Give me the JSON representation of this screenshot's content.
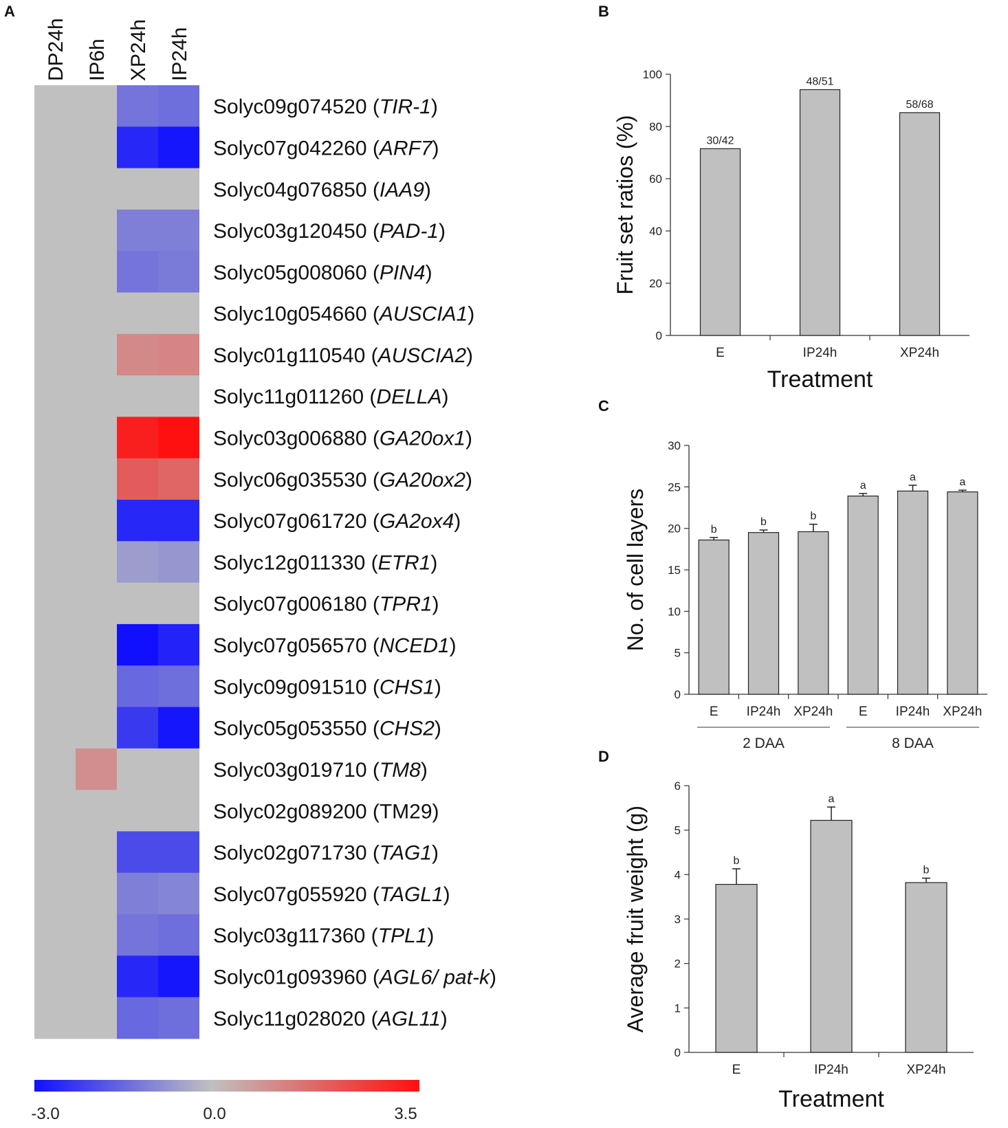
{
  "colors": {
    "low": "#1010ff",
    "mid": "#c0c0c0",
    "high": "#ff1010",
    "bar_fill": "#c0c0c0",
    "group_line": "#999999"
  },
  "chart_data": [
    {
      "panel": "A",
      "type": "heatmap",
      "columns": [
        "DP24h",
        "IP6h",
        "XP24h",
        "IP24h"
      ],
      "rows": [
        {
          "id": "Solyc09g074520",
          "gene": "TIR-1",
          "italic": true,
          "values": [
            0,
            0,
            -1.3,
            -1.4
          ]
        },
        {
          "id": "Solyc07g042260",
          "gene": "ARF7",
          "italic": true,
          "values": [
            0,
            0,
            -2.6,
            -2.9
          ]
        },
        {
          "id": "Solyc04g076850",
          "gene": "IAA9",
          "italic": true,
          "values": [
            0,
            0,
            0,
            0
          ]
        },
        {
          "id": "Solyc03g120450",
          "gene": "PAD-1",
          "italic": true,
          "values": [
            0,
            0,
            -1.1,
            -1.1
          ]
        },
        {
          "id": "Solyc05g008060",
          "gene": "PIN4",
          "italic": true,
          "values": [
            0,
            0,
            -1.3,
            -1.2
          ]
        },
        {
          "id": "Solyc10g054660",
          "gene": "AUSCIA1",
          "italic": true,
          "values": [
            0,
            0,
            0,
            0
          ]
        },
        {
          "id": "Solyc01g110540",
          "gene": "AUSCIA2",
          "italic": true,
          "values": [
            0,
            0,
            1.1,
            1.2
          ]
        },
        {
          "id": "Solyc11g011260",
          "gene": "DELLA",
          "italic": true,
          "values": [
            0,
            0,
            0,
            0
          ]
        },
        {
          "id": "Solyc03g006880",
          "gene": "GA20ox1",
          "italic": true,
          "values": [
            0,
            0,
            3.2,
            3.5
          ]
        },
        {
          "id": "Solyc06g035530",
          "gene": "GA20ox2",
          "italic": true,
          "values": [
            0,
            0,
            2.0,
            1.8
          ]
        },
        {
          "id": "Solyc07g061720",
          "gene": "GA2ox4",
          "italic": true,
          "values": [
            0,
            0,
            -2.6,
            -2.6
          ]
        },
        {
          "id": "Solyc12g011330",
          "gene": "ETR1",
          "italic": true,
          "values": [
            0,
            0,
            -0.6,
            -0.7
          ]
        },
        {
          "id": "Solyc07g006180",
          "gene": "TPR1",
          "italic": true,
          "values": [
            0,
            0,
            0,
            0
          ]
        },
        {
          "id": "Solyc07g056570",
          "gene": "NCED1",
          "italic": true,
          "values": [
            0,
            0,
            -3.0,
            -2.7
          ]
        },
        {
          "id": "Solyc09g091510",
          "gene": "CHS1",
          "italic": true,
          "values": [
            0,
            0,
            -1.5,
            -1.4
          ]
        },
        {
          "id": "Solyc05g053550",
          "gene": "CHS2",
          "italic": true,
          "values": [
            0,
            0,
            -2.3,
            -2.9
          ]
        },
        {
          "id": "Solyc03g019710",
          "gene": "TM8",
          "italic": true,
          "values": [
            0,
            1.0,
            0,
            0
          ]
        },
        {
          "id": "Solyc02g089200",
          "gene": "TM29",
          "italic": false,
          "values": [
            0,
            0,
            0,
            0
          ]
        },
        {
          "id": "Solyc02g071730",
          "gene": "TAG1",
          "italic": true,
          "values": [
            0,
            0,
            -2.0,
            -2.0
          ]
        },
        {
          "id": "Solyc07g055920",
          "gene": "TAGL1",
          "italic": true,
          "values": [
            0,
            0,
            -1.1,
            -1.0
          ]
        },
        {
          "id": "Solyc03g117360",
          "gene": "TPL1",
          "italic": true,
          "values": [
            0,
            0,
            -1.3,
            -1.4
          ]
        },
        {
          "id": "Solyc01g093960",
          "gene": "AGL6/ pat-k",
          "italic": true,
          "values": [
            0,
            0,
            -2.6,
            -2.9
          ]
        },
        {
          "id": "Solyc11g028020",
          "gene": "AGL11",
          "italic": true,
          "values": [
            0,
            0,
            -1.5,
            -1.4
          ]
        }
      ],
      "scale": {
        "min": -3.0,
        "mid": 0.0,
        "max": 3.5,
        "labels": [
          "-3.0",
          "0.0",
          "3.5"
        ]
      }
    },
    {
      "panel": "B",
      "type": "bar",
      "categories": [
        "E",
        "IP24h",
        "XP24h"
      ],
      "values": [
        71.5,
        94.1,
        85.3
      ],
      "data_labels": [
        "30/42",
        "48/51",
        "58/68"
      ],
      "xlabel": "Treatment",
      "ylabel": "Fruit set ratios (%)",
      "ylim": [
        0,
        100
      ],
      "yticks": [
        0,
        20,
        40,
        60,
        80,
        100
      ]
    },
    {
      "panel": "C",
      "type": "bar",
      "categories": [
        "E",
        "IP24h",
        "XP24h",
        "E",
        "IP24h",
        "XP24h"
      ],
      "groups": [
        {
          "label": "2 DAA",
          "members": [
            0,
            1,
            2
          ]
        },
        {
          "label": "8 DAA",
          "members": [
            3,
            4,
            5
          ]
        }
      ],
      "values": [
        18.6,
        19.5,
        19.6,
        23.9,
        24.5,
        24.4
      ],
      "errors": [
        0.3,
        0.3,
        0.9,
        0.3,
        0.7,
        0.2
      ],
      "data_labels": [
        "b",
        "b",
        "b",
        "a",
        "a",
        "a"
      ],
      "ylabel": "No. of cell layers",
      "ylim": [
        0,
        30
      ],
      "yticks": [
        0,
        5,
        10,
        15,
        20,
        25,
        30
      ]
    },
    {
      "panel": "D",
      "type": "bar",
      "categories": [
        "E",
        "IP24h",
        "XP24h"
      ],
      "values": [
        3.78,
        5.22,
        3.82
      ],
      "errors": [
        0.35,
        0.3,
        0.1
      ],
      "data_labels": [
        "b",
        "a",
        "b"
      ],
      "xlabel": "Treatment",
      "ylabel": "Average fruit weight (g)",
      "ylim": [
        0,
        6
      ],
      "yticks": [
        0,
        1,
        2,
        3,
        4,
        5,
        6
      ]
    }
  ]
}
